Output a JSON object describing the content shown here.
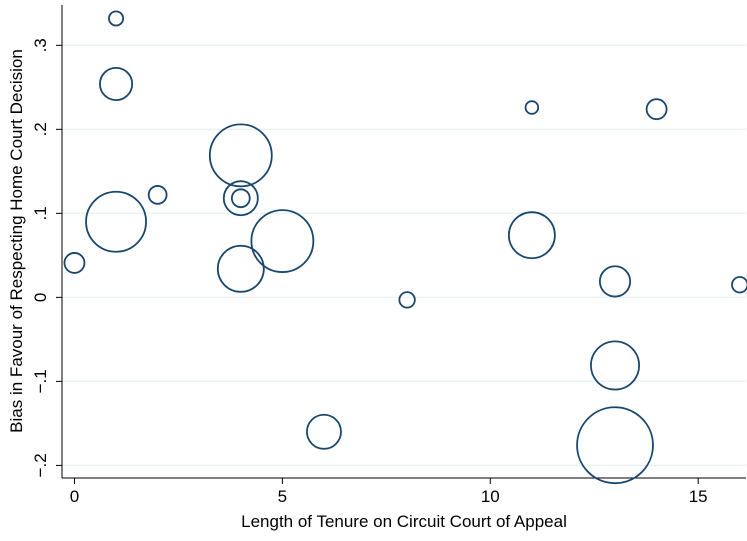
{
  "chart_data": {
    "type": "scatter",
    "x_label": "Length of Tenure on Circuit Court of Appeal",
    "y_label": "Bias in Favour of Respecting Home Court Decision",
    "x": [
      1,
      1,
      4,
      4,
      4,
      2,
      1,
      0,
      5,
      4,
      11,
      14,
      11,
      8,
      13,
      16,
      13,
      6,
      13
    ],
    "y": [
      0.332,
      0.254,
      0.169,
      0.118,
      0.118,
      0.122,
      0.09,
      0.041,
      0.067,
      0.034,
      0.226,
      0.224,
      0.074,
      -0.003,
      0.019,
      0.015,
      -0.081,
      -0.16,
      -0.176
    ],
    "sizes": [
      5,
      26,
      96,
      29,
      8,
      8,
      90,
      10,
      96,
      53,
      4,
      10,
      53,
      6,
      23,
      6,
      58,
      29,
      144
    ],
    "color": "#1a476f",
    "xlim": [
      -0.3,
      16.15
    ],
    "ylim": [
      -0.215,
      0.348
    ],
    "xticks": [
      0,
      5,
      10,
      15
    ],
    "yticks": [
      {
        "value": -0.2,
        "label": "−.2"
      },
      {
        "value": -0.1,
        "label": "−.1"
      },
      0,
      {
        "value": 0.1,
        "label": ".1"
      },
      {
        "value": 0.2,
        "label": ".2"
      },
      {
        "value": 0.3,
        "label": ".3"
      }
    ],
    "grid": true
  }
}
